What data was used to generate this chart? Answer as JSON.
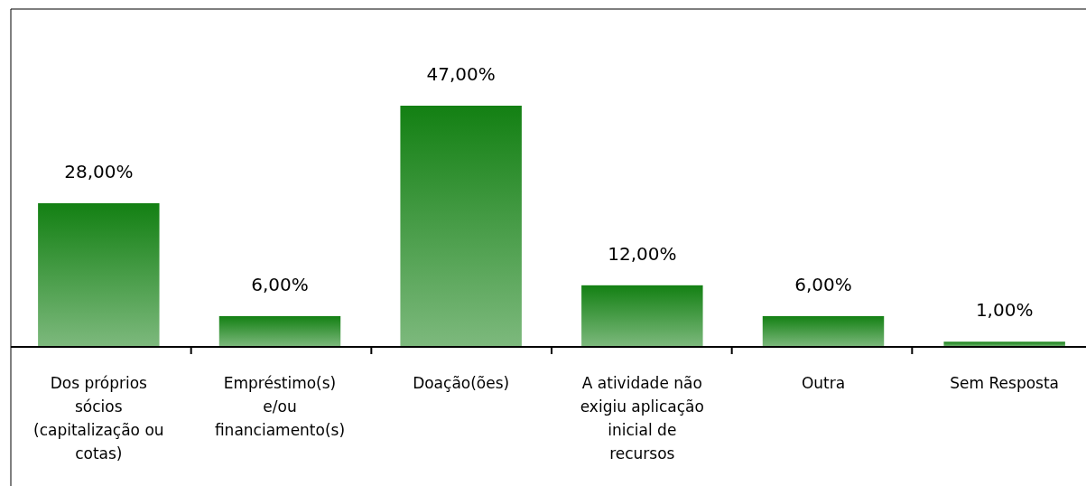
{
  "chart_data": {
    "type": "bar",
    "categories": [
      "Dos próprios sócios (capitalização ou cotas)",
      "Empréstimo(s) e/ou financiamento(s)",
      "Doação(ões)",
      "A atividade não exigiu aplicação inicial de recursos",
      "Outra",
      "Sem Resposta"
    ],
    "values": [
      28,
      6,
      47,
      12,
      6,
      1
    ],
    "value_labels": [
      "28,00%",
      "6,00%",
      "47,00%",
      "12,00%",
      "6,00%",
      "1,00%"
    ],
    "color": "#138013"
  }
}
